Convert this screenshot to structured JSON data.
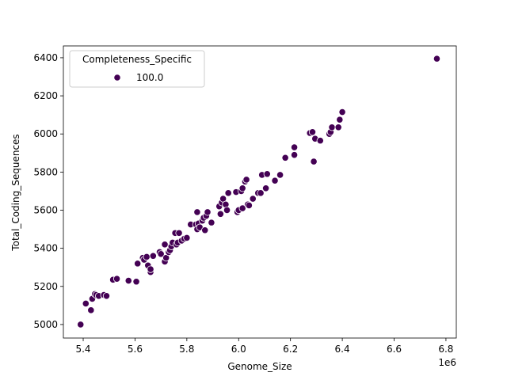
{
  "chart_data": {
    "type": "scatter",
    "x_label": "Genome_Size",
    "y_label": "Total_Coding_Sequences",
    "x_offset_label": "1e6",
    "legend_title": "Completeness_Specific",
    "legend_loc": "upper left",
    "xlim": [
      5.3235,
      6.84
    ],
    "ylim": [
      4929,
      6462
    ],
    "xticks": [
      5.4,
      5.6,
      5.8,
      {
        "value": 6.0,
        "label": "6.0"
      },
      6.2,
      6.4,
      6.6,
      6.8
    ],
    "yticks": [
      5000,
      5200,
      5400,
      5600,
      5800,
      6000,
      6200,
      6400
    ],
    "x": [
      5.39,
      5.41,
      5.43,
      5.435,
      5.445,
      5.45,
      5.46,
      5.48,
      5.49,
      5.515,
      5.53,
      5.575,
      5.605,
      5.61,
      5.63,
      5.635,
      5.645,
      5.65,
      5.66,
      5.66,
      5.67,
      5.695,
      5.7,
      5.715,
      5.715,
      5.72,
      5.73,
      5.735,
      5.74,
      5.745,
      5.755,
      5.76,
      5.765,
      5.77,
      5.78,
      5.79,
      5.8,
      5.815,
      5.835,
      5.84,
      5.84,
      5.845,
      5.85,
      5.86,
      5.865,
      5.87,
      5.875,
      5.88,
      5.895,
      5.925,
      5.93,
      5.935,
      5.94,
      5.95,
      5.955,
      5.96,
      5.99,
      5.995,
      6.0,
      6.01,
      6.015,
      6.015,
      6.025,
      6.03,
      6.035,
      6.04,
      6.055,
      6.075,
      6.085,
      6.09,
      6.105,
      6.11,
      6.14,
      6.16,
      6.18,
      6.215,
      6.215,
      6.275,
      6.285,
      6.29,
      6.295,
      6.315,
      6.35,
      6.355,
      6.36,
      6.385,
      6.39,
      6.4,
      6.765
    ],
    "series": [
      {
        "name": "100.0",
        "color": "#440154",
        "values": [
          5000,
          5110,
          5075,
          5135,
          5160,
          5155,
          5150,
          5155,
          5150,
          5235,
          5240,
          5230,
          5225,
          5320,
          5350,
          5340,
          5355,
          5310,
          5275,
          5290,
          5360,
          5380,
          5370,
          5330,
          5420,
          5350,
          5380,
          5390,
          5410,
          5430,
          5480,
          5420,
          5430,
          5480,
          5440,
          5450,
          5455,
          5525,
          5525,
          5590,
          5500,
          5530,
          5510,
          5545,
          5560,
          5495,
          5570,
          5590,
          5535,
          5620,
          5580,
          5640,
          5660,
          5630,
          5600,
          5690,
          5695,
          5590,
          5600,
          5700,
          5715,
          5610,
          5750,
          5760,
          5630,
          5625,
          5660,
          5690,
          5690,
          5785,
          5715,
          5790,
          5755,
          5785,
          5875,
          5890,
          5930,
          6005,
          6010,
          5855,
          5975,
          5965,
          6000,
          6010,
          6035,
          6035,
          6075,
          6115,
          6395
        ]
      }
    ]
  }
}
